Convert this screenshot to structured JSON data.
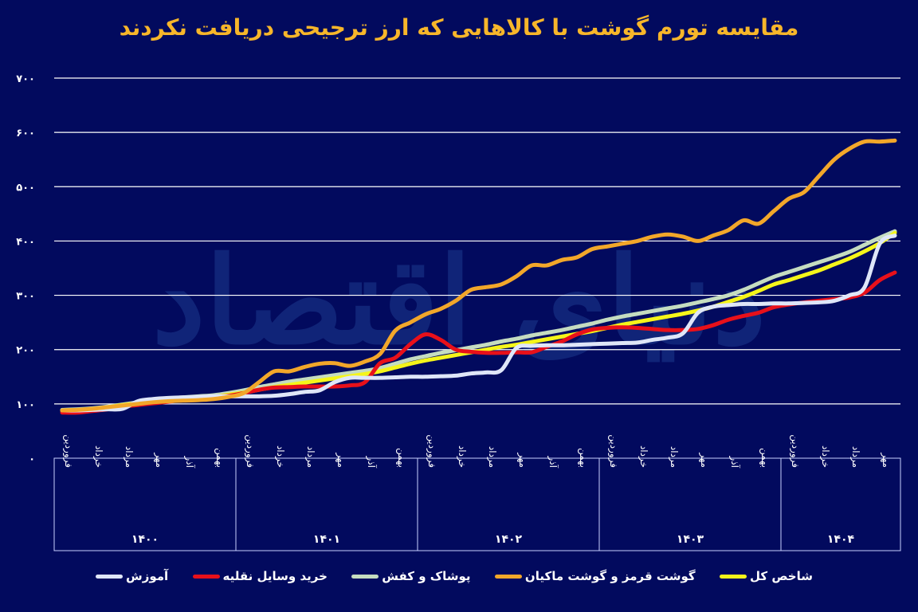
{
  "title": "مقایسه تورم گوشت با کالاهایی که ارز ترجیحی دریافت نکردند",
  "watermark": "دنیای اقتصاد",
  "colors": {
    "background": "#020a5e",
    "title": "#f7b62a",
    "grid": "#ffffff"
  },
  "legend": [
    {
      "label": "شاخص کل",
      "color": "#f5f51a"
    },
    {
      "label": "گوشت قرمز و گوشت ماکیان",
      "color": "#f2a72a"
    },
    {
      "label": "پوشاک و کفش",
      "color": "#c5dcc0"
    },
    {
      "label": "خرید وسایل نقلیه",
      "color": "#e8101a"
    },
    {
      "label": "آموزش",
      "color": "#dfe6f8"
    }
  ],
  "chart_data": {
    "type": "line",
    "title": "مقایسه تورم گوشت با کالاهایی که ارز ترجیحی دریافت نکردند",
    "xlabel": "",
    "ylabel": "",
    "ylim": [
      0,
      700
    ],
    "yticks": [
      "۰",
      "۱۰۰",
      "۲۰۰",
      "۳۰۰",
      "۴۰۰",
      "۵۰۰",
      "۶۰۰",
      "۷۰۰"
    ],
    "grid": true,
    "legend_position": "bottom",
    "years": [
      {
        "label": "۱۴۰۰",
        "months": [
          "فروردین",
          "خرداد",
          "مرداد",
          "مهر",
          "آذر",
          "بهمن"
        ]
      },
      {
        "label": "۱۴۰۱",
        "months": [
          "فروردین",
          "خرداد",
          "مرداد",
          "مهر",
          "آذر",
          "بهمن"
        ]
      },
      {
        "label": "۱۴۰۲",
        "months": [
          "فروردین",
          "خرداد",
          "مرداد",
          "مهر",
          "آذر",
          "بهمن"
        ]
      },
      {
        "label": "۱۴۰۳",
        "months": [
          "فروردین",
          "خرداد",
          "مرداد",
          "مهر",
          "آذر",
          "بهمن"
        ]
      },
      {
        "label": "۱۴۰۴",
        "months": [
          "فروردین",
          "خرداد",
          "مرداد",
          "مهر"
        ]
      }
    ],
    "x": [
      "1400-01",
      "1400-02",
      "1400-03",
      "1400-04",
      "1400-05",
      "1400-06",
      "1400-07",
      "1400-08",
      "1400-09",
      "1400-10",
      "1400-11",
      "1400-12",
      "1401-01",
      "1401-02",
      "1401-03",
      "1401-04",
      "1401-05",
      "1401-06",
      "1401-07",
      "1401-08",
      "1401-09",
      "1401-10",
      "1401-11",
      "1401-12",
      "1402-01",
      "1402-02",
      "1402-03",
      "1402-04",
      "1402-05",
      "1402-06",
      "1402-07",
      "1402-08",
      "1402-09",
      "1402-10",
      "1402-11",
      "1402-12",
      "1403-01",
      "1403-02",
      "1403-03",
      "1403-04",
      "1403-05",
      "1403-06",
      "1403-07",
      "1403-08",
      "1403-09",
      "1403-10",
      "1403-11",
      "1403-12",
      "1404-01",
      "1404-02",
      "1404-03",
      "1404-04",
      "1404-05",
      "1404-06",
      "1404-07",
      "1404-08"
    ],
    "series": [
      {
        "name": "شاخص کل",
        "color": "#f5f51a",
        "values": [
          88,
          89,
          91,
          94,
          98,
          101,
          104,
          107,
          109,
          111,
          113,
          117,
          121,
          126,
          131,
          135,
          139,
          143,
          147,
          151,
          155,
          160,
          167,
          174,
          180,
          185,
          190,
          195,
          200,
          205,
          209,
          214,
          219,
          224,
          229,
          234,
          240,
          246,
          251,
          256,
          261,
          266,
          272,
          279,
          288,
          297,
          308,
          320,
          328,
          337,
          346,
          357,
          368,
          381,
          396,
          415
        ]
      },
      {
        "name": "گوشت قرمز و گوشت ماکیان",
        "color": "#f2a72a",
        "values": [
          88,
          89,
          91,
          94,
          97,
          100,
          103,
          105,
          106,
          107,
          109,
          113,
          120,
          140,
          160,
          160,
          168,
          174,
          175,
          170,
          178,
          192,
          235,
          250,
          265,
          275,
          290,
          310,
          315,
          320,
          335,
          355,
          355,
          365,
          370,
          385,
          390,
          395,
          400,
          408,
          412,
          408,
          400,
          410,
          420,
          438,
          432,
          455,
          478,
          490,
          520,
          550,
          570,
          583,
          583,
          585
        ]
      },
      {
        "name": "پوشاک و کفش",
        "color": "#c5dcc0",
        "values": [
          89,
          90,
          92,
          95,
          99,
          103,
          107,
          110,
          112,
          114,
          116,
          120,
          125,
          131,
          136,
          141,
          145,
          149,
          153,
          157,
          161,
          166,
          174,
          182,
          188,
          194,
          199,
          204,
          209,
          215,
          220,
          226,
          231,
          236,
          242,
          248,
          255,
          261,
          266,
          271,
          276,
          281,
          287,
          293,
          300,
          310,
          322,
          334,
          343,
          352,
          361,
          370,
          380,
          393,
          406,
          418
        ]
      },
      {
        "name": "خرید وسایل نقلیه",
        "color": "#e8101a",
        "values": [
          84,
          84,
          87,
          90,
          95,
          98,
          101,
          104,
          108,
          111,
          113,
          115,
          120,
          126,
          130,
          131,
          132,
          132,
          132,
          134,
          140,
          175,
          185,
          210,
          228,
          218,
          200,
          196,
          194,
          194,
          195,
          195,
          205,
          215,
          228,
          237,
          240,
          241,
          240,
          238,
          236,
          236,
          238,
          245,
          255,
          262,
          268,
          278,
          283,
          287,
          290,
          293,
          296,
          305,
          328,
          342
        ]
      },
      {
        "name": "آموزش",
        "color": "#dfe6f8",
        "values": [
          88,
          88,
          89,
          90,
          91,
          105,
          109,
          111,
          112,
          113,
          114,
          114,
          114,
          114,
          115,
          118,
          122,
          125,
          140,
          148,
          148,
          148,
          149,
          150,
          150,
          151,
          152,
          156,
          158,
          162,
          203,
          207,
          208,
          208,
          209,
          210,
          211,
          212,
          213,
          218,
          222,
          230,
          268,
          279,
          282,
          284,
          284,
          285,
          285,
          286,
          287,
          290,
          300,
          315,
          395,
          410
        ]
      }
    ]
  }
}
